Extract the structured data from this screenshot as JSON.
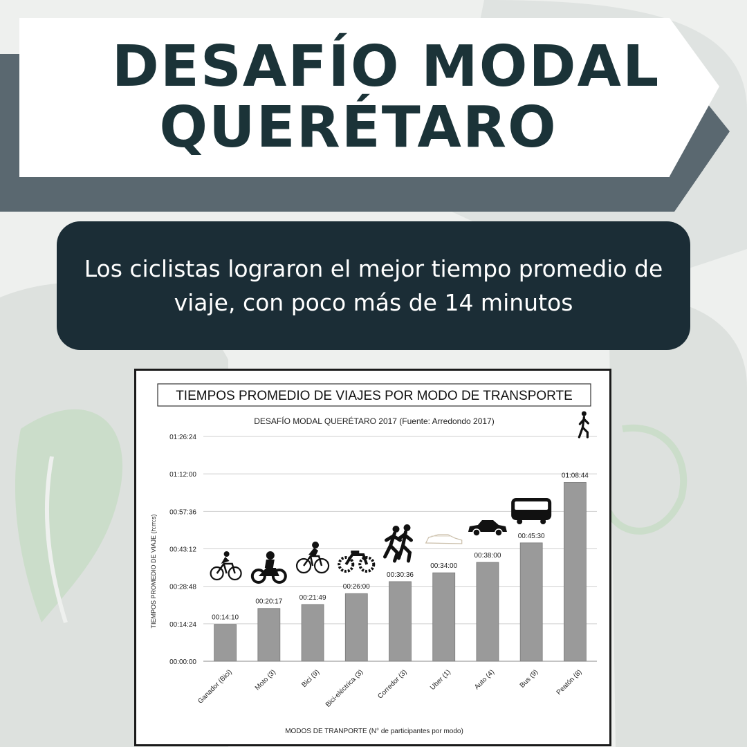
{
  "header": {
    "title_line1": "DESAFÍO MODAL",
    "title_line2": "QUERÉTARO"
  },
  "callout": {
    "text": "Los ciclistas lograron el mejor tiempo promedio de viaje, con poco más de 14 minutos"
  },
  "colors": {
    "title_text": "#1b3338",
    "callout_bg": "#1b2d36",
    "band": "#5a6870",
    "bar": "#9a9a9a"
  },
  "chart_data": {
    "type": "bar",
    "title": "TIEMPOS PROMEDIO DE VIAJES POR MODO DE TRANSPORTE",
    "subtitle": "DESAFÍO MODAL QUERÉTARO 2017 (Fuente: Arredondo 2017)",
    "xlabel": "MODOS DE TRANPORTE (N° de participantes por modo)",
    "ylabel": "TIEMPOS PROMEDIO DE VIAJE (h:m:s)",
    "categories": [
      "Ganador (Bici)",
      "Moto (3)",
      "Bici (9)",
      "Bici-eléctrica (3)",
      "Corredor (3)",
      "Uber (1)",
      "Auto (4)",
      "Bus (9)",
      "Peatón (8)"
    ],
    "values_seconds": [
      850,
      1217,
      1309,
      1560,
      1836,
      2040,
      2280,
      2730,
      4124
    ],
    "data_labels": [
      "00:14:10",
      "00:20:17",
      "00:21:49",
      "00:26:00",
      "00:30:36",
      "00:34:00",
      "00:38:00",
      "00:45:30",
      "01:08:44"
    ],
    "ylim_seconds": [
      0,
      5184
    ],
    "yticks_seconds": [
      0,
      864,
      1728,
      2592,
      3456,
      4320,
      5184
    ],
    "ytick_labels": [
      "00:00:00",
      "00:14:24",
      "00:28:48",
      "00:43:12",
      "00:57:36",
      "01:12:00",
      "01:26:24"
    ],
    "grid": true,
    "icons": [
      "cyclist-icon",
      "motorcycle-icon",
      "bicycle-icon",
      "ebike-icon",
      "runners-icon",
      "uber-car-icon",
      "car-icon",
      "bus-icon",
      "pedestrian-icon"
    ]
  }
}
